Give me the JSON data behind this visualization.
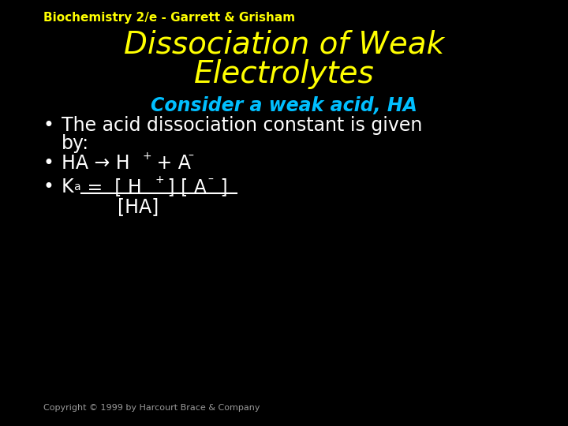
{
  "background_color": "#000000",
  "header_text": "Biochemistry 2/e - Garrett & Grisham",
  "header_color": "#ffff00",
  "header_fontsize": 11,
  "title_line1": "Dissociation of Weak",
  "title_line2": "Electrolytes",
  "title_color": "#ffff00",
  "title_fontsize": 28,
  "subtitle_text": "Consider a weak acid, HA",
  "subtitle_color": "#00bfff",
  "subtitle_fontsize": 17,
  "bullet_color": "#ffffff",
  "bullet_fontsize": 17,
  "bullet_fontsize_super": 10,
  "line_color": "#ffffff",
  "copyright_text": "Copyright © 1999 by Harcourt Brace & Company",
  "copyright_color": "#999999",
  "copyright_fontsize": 8
}
